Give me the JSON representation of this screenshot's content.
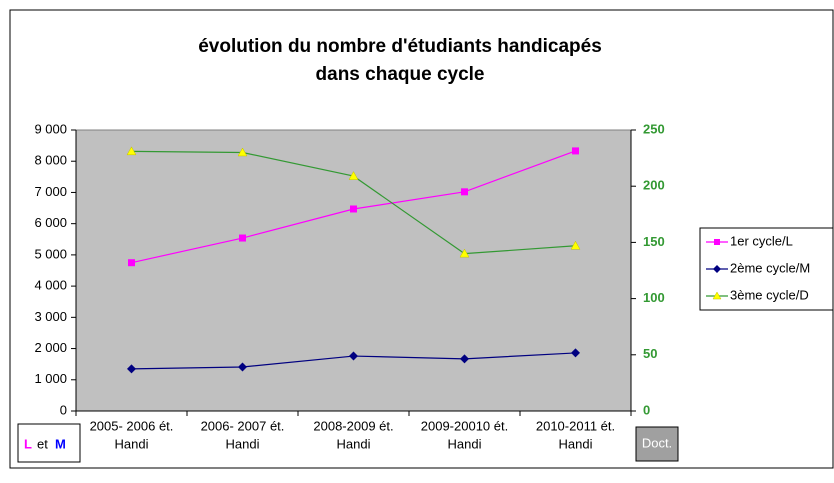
{
  "chart_data": {
    "type": "line",
    "title": [
      "évolution du nombre d'étudiants handicapés",
      "dans chaque cycle"
    ],
    "categories": [
      [
        "2005- 2006 ét.",
        "Handi"
      ],
      [
        "2006- 2007 ét.",
        "Handi"
      ],
      [
        "2008-2009 ét.",
        "Handi"
      ],
      [
        "2009-20010 ét.",
        "Handi"
      ],
      [
        "2010-2011 ét.",
        "Handi"
      ]
    ],
    "series": [
      {
        "name": "1er cycle/L",
        "color": "#ff00ff",
        "marker": "square",
        "values": [
          4750,
          5540,
          6470,
          7020,
          8330
        ]
      },
      {
        "name": "2ème cycle/M",
        "color": "#000080",
        "marker": "diamond",
        "values": [
          1350,
          1410,
          1760,
          1670,
          1860
        ]
      },
      {
        "name": "3ème cycle/D",
        "color": "#339933",
        "marker_color": "#ffff00",
        "marker": "triangle",
        "axis": "y2",
        "values": [
          231,
          230,
          209,
          140,
          147
        ]
      }
    ],
    "ylim": [
      0,
      9000
    ],
    "yticks": [
      0,
      {
        "value": 1000,
        "label": "1 000"
      },
      {
        "value": 2000,
        "label": "2 000"
      },
      {
        "value": 3000,
        "label": "3 000"
      },
      {
        "value": 4000,
        "label": "4 000"
      },
      {
        "value": 5000,
        "label": "5 000"
      },
      {
        "value": 6000,
        "label": "6 000"
      },
      {
        "value": 7000,
        "label": "7 000"
      },
      {
        "value": 8000,
        "label": "8 000"
      },
      {
        "value": 9000,
        "label": "9 000"
      }
    ],
    "y2lim": [
      0,
      250
    ],
    "y2ticks": [
      0,
      50,
      100,
      150,
      200,
      250
    ],
    "y2_color": "#339933",
    "plot_background": "#c0c0c0",
    "legend": "right",
    "annotations": {
      "left_box": [
        "L",
        "et",
        "M"
      ],
      "right_box": "Doct."
    }
  }
}
